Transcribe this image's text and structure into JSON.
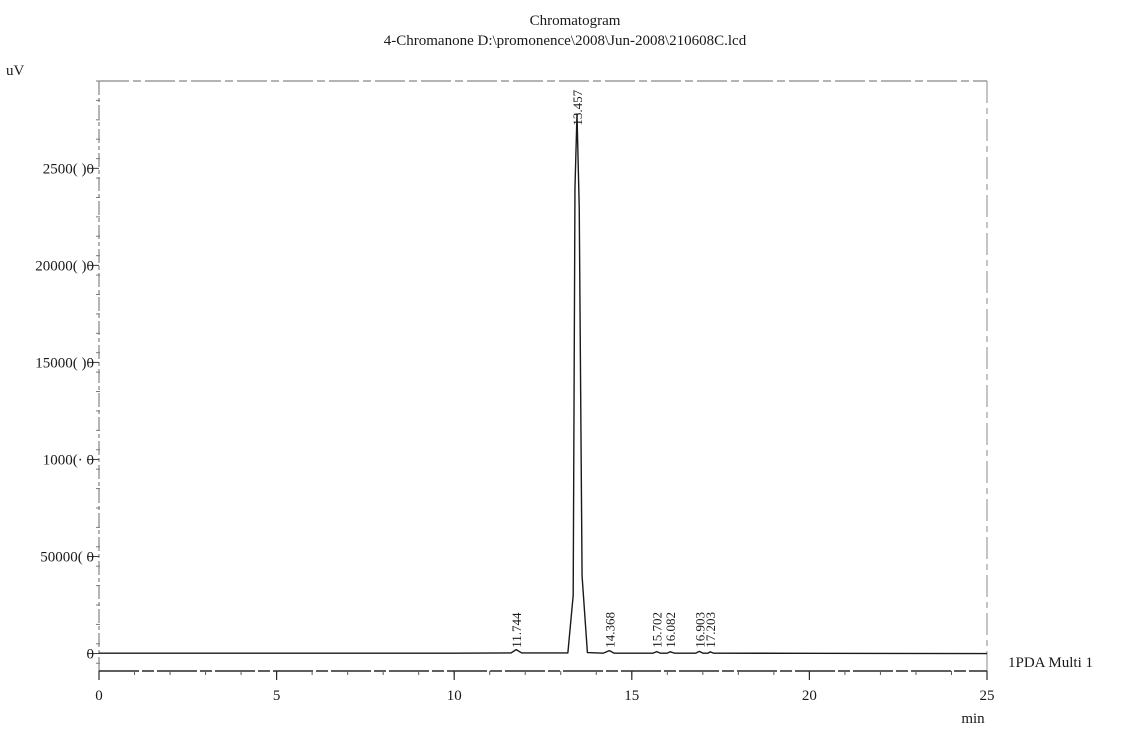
{
  "chart_data": {
    "type": "line",
    "title": "Chromatogram",
    "subtitle": "4-Chromanone D:\\promonence\\2008\\Jun-2008\\210608C.lcd",
    "xlabel": "min",
    "ylabel": "uV",
    "xlim": [
      0,
      25
    ],
    "ylim": [
      -90000,
      2950000
    ],
    "x_ticks": [
      0,
      5,
      10,
      15,
      20,
      25
    ],
    "y_ticks": [
      0,
      500000,
      1000000,
      1500000,
      2000000,
      2500000
    ],
    "y_tick_labels": [
      "0",
      "50000( 0",
      "1000(· 0",
      "15000( )0",
      "20000( )0",
      "2500( )0"
    ],
    "series": [
      {
        "name": "1PDA Multi 1",
        "x": [
          0,
          5,
          10,
          11.6,
          11.744,
          11.9,
          13.2,
          13.35,
          13.4,
          13.457,
          13.52,
          13.6,
          13.75,
          14.2,
          14.368,
          14.5,
          15.6,
          15.702,
          15.8,
          16.0,
          16.082,
          16.2,
          16.8,
          16.903,
          17.0,
          17.15,
          17.203,
          17.3,
          20,
          25
        ],
        "y": [
          2000,
          2000,
          2000,
          3000,
          20000,
          3000,
          3000,
          300000,
          2400000,
          2780000,
          2300000,
          400000,
          5000,
          2000,
          15000,
          2000,
          2000,
          10000,
          2000,
          2000,
          9000,
          2000,
          2000,
          11000,
          2000,
          2000,
          9000,
          2000,
          1000,
          0
        ]
      }
    ],
    "peaks": [
      {
        "label": "11.744",
        "x": 11.744,
        "label_y": 30000
      },
      {
        "label": "13.457",
        "x": 13.457,
        "label_y": 2720000
      },
      {
        "label": "14.368",
        "x": 14.368,
        "label_y": 30000
      },
      {
        "label": "15.702",
        "x": 15.702,
        "label_y": 30000
      },
      {
        "label": "16.082",
        "x": 16.082,
        "label_y": 30000
      },
      {
        "label": "16.903",
        "x": 16.903,
        "label_y": 30000
      },
      {
        "label": "17.203",
        "x": 17.203,
        "label_y": 30000
      }
    ],
    "legend": "right",
    "grid": false
  }
}
